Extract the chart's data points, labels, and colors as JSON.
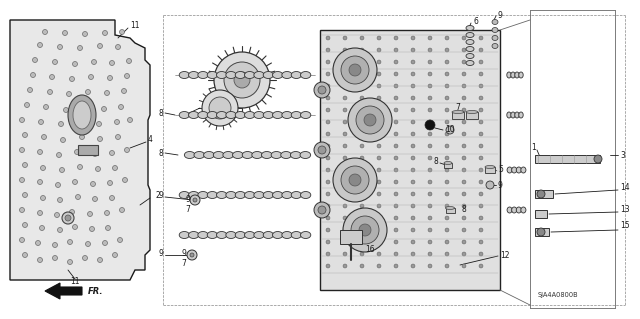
{
  "bg_color": "#f0f0f0",
  "line_color": "#1a1a1a",
  "diagram_code": "SJA4A0800B",
  "fig_w": 6.4,
  "fig_h": 3.19,
  "dpi": 100,
  "gray_light": "#cccccc",
  "gray_mid": "#888888",
  "gray_dark": "#444444",
  "label_fs": 5.5,
  "small_fs": 4.5,
  "note_fs": 4.8
}
